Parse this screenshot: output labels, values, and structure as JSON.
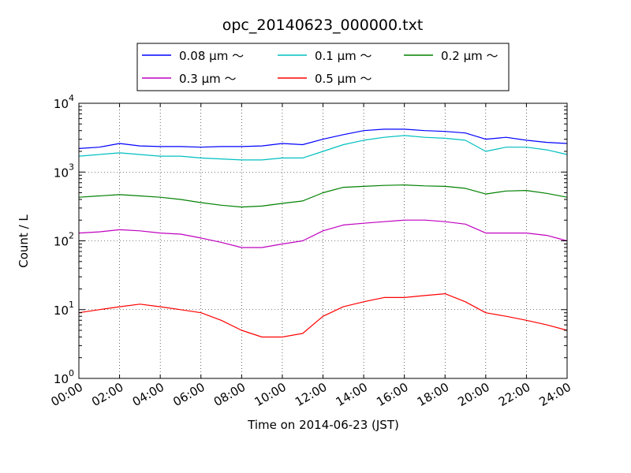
{
  "chart_data": {
    "type": "line",
    "title": "opc_20140623_000000.txt",
    "xlabel": "Time on 2014-06-23 (JST)",
    "ylabel": "Count / L",
    "yscale": "log",
    "ylim": [
      1,
      10000
    ],
    "xlim": [
      "00:00",
      "24:00"
    ],
    "grid": true,
    "legend_position": "top-center (above plot)",
    "x_tick_labels": [
      "00:00",
      "02:00",
      "04:00",
      "06:00",
      "08:00",
      "10:00",
      "12:00",
      "14:00",
      "16:00",
      "18:00",
      "20:00",
      "22:00",
      "24:00"
    ],
    "y_tick_labels": [
      {
        "base": "10",
        "exp": "0"
      },
      {
        "base": "10",
        "exp": "1"
      },
      {
        "base": "10",
        "exp": "2"
      },
      {
        "base": "10",
        "exp": "3"
      },
      {
        "base": "10",
        "exp": "4"
      }
    ],
    "x": [
      "00:00",
      "01:00",
      "02:00",
      "03:00",
      "04:00",
      "05:00",
      "06:00",
      "07:00",
      "08:00",
      "09:00",
      "10:00",
      "11:00",
      "12:00",
      "13:00",
      "14:00",
      "15:00",
      "16:00",
      "17:00",
      "18:00",
      "19:00",
      "20:00",
      "21:00",
      "22:00",
      "23:00",
      "24:00"
    ],
    "series": [
      {
        "name": "0.08 μm ～",
        "color": "#0000ff",
        "values": [
          2200,
          2300,
          2600,
          2400,
          2350,
          2350,
          2300,
          2350,
          2350,
          2400,
          2600,
          2500,
          3000,
          3500,
          4000,
          4200,
          4200,
          4000,
          3900,
          3700,
          3000,
          3200,
          2900,
          2700,
          2600
        ]
      },
      {
        "name": "0.1 μm ～",
        "color": "#00bfbf",
        "values": [
          1700,
          1800,
          1900,
          1800,
          1700,
          1700,
          1600,
          1550,
          1500,
          1500,
          1600,
          1600,
          2000,
          2500,
          2900,
          3200,
          3400,
          3200,
          3100,
          2900,
          2000,
          2300,
          2300,
          2100,
          1800
        ]
      },
      {
        "name": "0.2 μm ～",
        "color": "#008000",
        "values": [
          430,
          450,
          470,
          450,
          430,
          400,
          360,
          330,
          310,
          320,
          350,
          380,
          500,
          600,
          620,
          640,
          650,
          630,
          620,
          580,
          480,
          530,
          540,
          490,
          430
        ]
      },
      {
        "name": "0.3 μm ～",
        "color": "#bf00bf",
        "values": [
          130,
          135,
          145,
          140,
          130,
          125,
          110,
          95,
          80,
          80,
          90,
          100,
          140,
          170,
          180,
          190,
          200,
          200,
          190,
          175,
          130,
          130,
          130,
          120,
          100
        ]
      },
      {
        "name": "0.5 μm ～",
        "color": "#ff0000",
        "values": [
          9,
          10,
          11,
          12,
          11,
          10,
          9,
          7,
          5,
          4,
          4,
          4.5,
          8,
          11,
          13,
          15,
          15,
          16,
          17,
          13,
          9,
          8,
          7,
          6,
          5
        ]
      }
    ]
  }
}
